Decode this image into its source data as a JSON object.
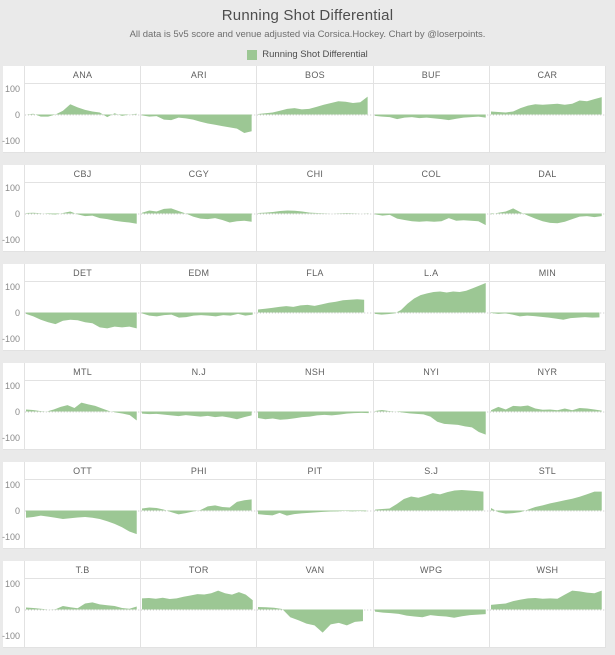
{
  "header": {
    "title": "Running Shot Differential",
    "subtitle": "All data is 5v5 score and venue adjusted via Corsica.Hockey. Chart by @loserpoints.",
    "legend_label": "Running Shot Differential"
  },
  "colors": {
    "area_fill": "#9cc794",
    "outer_bg": "#eaeaea",
    "panel_bg": "#ffffff",
    "grid_border": "#e2e2e2",
    "zero_line": "#c9c9c9",
    "title_text": "#4e4e4e",
    "subtitle_text": "#6e6e6e",
    "axis_text": "#8a8a8a",
    "team_text": "#5f5f5f"
  },
  "axis": {
    "ticks": [
      "100",
      "0",
      "-100"
    ],
    "tick_values": [
      100,
      0,
      -100
    ]
  },
  "chart_data": {
    "type": "area",
    "title": "Running Shot Differential",
    "ylabel": "Running Shot Differential",
    "xlabel": "",
    "ylim": [
      -100,
      100
    ],
    "grid": false,
    "legend_position": "top-center",
    "layout": {
      "rows": 6,
      "cols": 5
    },
    "teams": [
      {
        "label": "ANA",
        "end": 0.97,
        "values": [
          0,
          3,
          -8,
          -8,
          0,
          15,
          40,
          28,
          18,
          12,
          8,
          -10,
          5,
          -5,
          0,
          3
        ]
      },
      {
        "label": "ARI",
        "end": 0.96,
        "values": [
          -3,
          -8,
          -6,
          -20,
          -22,
          -12,
          -15,
          -20,
          -28,
          -35,
          -40,
          -45,
          -50,
          -55,
          -72,
          -65
        ]
      },
      {
        "label": "BOS",
        "end": 0.96,
        "values": [
          2,
          5,
          8,
          15,
          22,
          25,
          20,
          22,
          30,
          38,
          45,
          52,
          50,
          45,
          48,
          70
        ]
      },
      {
        "label": "BUF",
        "end": 0.97,
        "values": [
          -5,
          -8,
          -10,
          -18,
          -12,
          -10,
          -14,
          -12,
          -15,
          -18,
          -22,
          -16,
          -12,
          -10,
          -8,
          -12
        ]
      },
      {
        "label": "CAR",
        "end": 0.97,
        "values": [
          12,
          10,
          8,
          12,
          25,
          35,
          40,
          38,
          40,
          42,
          38,
          42,
          55,
          52,
          60,
          68
        ]
      },
      {
        "label": "CBJ",
        "end": 0.97,
        "values": [
          2,
          3,
          1,
          -2,
          -4,
          2,
          8,
          -3,
          -10,
          -8,
          -18,
          -22,
          -28,
          -32,
          -35,
          -40
        ]
      },
      {
        "label": "CGY",
        "end": 0.96,
        "values": [
          3,
          12,
          8,
          18,
          20,
          10,
          0,
          -12,
          -20,
          -22,
          -18,
          -25,
          -35,
          -30,
          -28,
          -32
        ]
      },
      {
        "label": "CHI",
        "end": 0.97,
        "values": [
          2,
          4,
          6,
          10,
          12,
          11,
          8,
          4,
          2,
          1,
          0,
          1,
          2,
          1,
          0,
          1
        ]
      },
      {
        "label": "COL",
        "end": 0.97,
        "values": [
          -3,
          -8,
          -5,
          -20,
          -25,
          -30,
          -32,
          -30,
          -32,
          -30,
          -18,
          -28,
          -26,
          -28,
          -30,
          -45
        ]
      },
      {
        "label": "DAL",
        "end": 0.97,
        "values": [
          -3,
          3,
          8,
          20,
          5,
          -8,
          -20,
          -30,
          -36,
          -38,
          -32,
          -22,
          -12,
          -10,
          -14,
          -10
        ]
      },
      {
        "label": "DET",
        "end": 0.97,
        "values": [
          -5,
          -15,
          -28,
          -38,
          -45,
          -32,
          -28,
          -30,
          -38,
          -42,
          -58,
          -62,
          -55,
          -58,
          -55,
          -62
        ]
      },
      {
        "label": "EDM",
        "end": 0.97,
        "values": [
          -3,
          -12,
          -15,
          -10,
          -8,
          -20,
          -18,
          -12,
          -10,
          -12,
          -15,
          -10,
          -12,
          -5,
          -12,
          -8
        ]
      },
      {
        "label": "FLA",
        "end": 0.93,
        "values": [
          12,
          15,
          18,
          22,
          25,
          22,
          28,
          30,
          26,
          32,
          38,
          42,
          48,
          50,
          52,
          50
        ]
      },
      {
        "label": "L.A",
        "end": 0.97,
        "values": [
          -5,
          -8,
          -6,
          -3,
          10,
          35,
          55,
          68,
          75,
          80,
          82,
          78,
          82,
          80,
          85,
          95,
          105,
          140
        ]
      },
      {
        "label": "MIN",
        "end": 0.95,
        "values": [
          -2,
          -5,
          -3,
          -8,
          -15,
          -12,
          -14,
          -17,
          -20,
          -24,
          -28,
          -22,
          -20,
          -18,
          -20,
          -19
        ]
      },
      {
        "label": "MTL",
        "end": 0.97,
        "values": [
          8,
          6,
          2,
          0,
          8,
          18,
          25,
          14,
          35,
          28,
          22,
          12,
          2,
          -4,
          -8,
          -14,
          -35
        ]
      },
      {
        "label": "N.J",
        "end": 0.96,
        "values": [
          -8,
          -10,
          -9,
          -12,
          -15,
          -18,
          -14,
          -17,
          -20,
          -17,
          -22,
          -19,
          -24,
          -30,
          -22,
          -15
        ]
      },
      {
        "label": "NSH",
        "end": 0.97,
        "values": [
          -25,
          -30,
          -27,
          -32,
          -30,
          -26,
          -22,
          -20,
          -15,
          -13,
          -15,
          -12,
          -8,
          -6,
          -5,
          -6
        ]
      },
      {
        "label": "NYI",
        "end": 0.97,
        "values": [
          2,
          6,
          2,
          0,
          -4,
          -7,
          -9,
          -11,
          -20,
          -40,
          -48,
          -50,
          -52,
          -58,
          -62,
          -80,
          -90
        ]
      },
      {
        "label": "NYR",
        "end": 0.97,
        "values": [
          5,
          18,
          8,
          22,
          20,
          24,
          12,
          7,
          8,
          5,
          12,
          5,
          14,
          12,
          8,
          4
        ]
      },
      {
        "label": "OTT",
        "end": 0.97,
        "values": [
          -28,
          -25,
          -20,
          -24,
          -28,
          -33,
          -30,
          -27,
          -25,
          -28,
          -33,
          -42,
          -52,
          -65,
          -82,
          -92
        ]
      },
      {
        "label": "PHI",
        "end": 0.96,
        "values": [
          8,
          12,
          10,
          4,
          -6,
          -15,
          -10,
          -4,
          2,
          16,
          20,
          14,
          12,
          34,
          40,
          44
        ]
      },
      {
        "label": "PIT",
        "end": 0.95,
        "values": [
          -14,
          -17,
          -19,
          -9,
          -20,
          -14,
          -11,
          -9,
          -7,
          -5,
          -4,
          -3,
          -1,
          -3,
          -2,
          -3
        ]
      },
      {
        "label": "S.J",
        "end": 0.95,
        "values": [
          4,
          6,
          8,
          25,
          45,
          55,
          50,
          58,
          68,
          63,
          72,
          78,
          80,
          78,
          76,
          74
        ]
      },
      {
        "label": "STL",
        "end": 0.97,
        "values": [
          10,
          -6,
          -12,
          -10,
          -6,
          4,
          14,
          20,
          28,
          34,
          40,
          46,
          54,
          64,
          74,
          74
        ]
      },
      {
        "label": "T.B",
        "end": 0.97,
        "values": [
          8,
          6,
          3,
          0,
          1,
          14,
          9,
          5,
          24,
          28,
          20,
          17,
          14,
          6,
          3,
          12
        ]
      },
      {
        "label": "TOR",
        "end": 0.97,
        "values": [
          44,
          45,
          42,
          46,
          41,
          44,
          50,
          55,
          60,
          59,
          64,
          74,
          64,
          58,
          68,
          58,
          36
        ]
      },
      {
        "label": "VAN",
        "end": 0.92,
        "values": [
          10,
          9,
          7,
          2,
          -30,
          -42,
          -55,
          -62,
          -90,
          -58,
          -52,
          -62,
          -48,
          -45
        ]
      },
      {
        "label": "WPG",
        "end": 0.97,
        "values": [
          -8,
          -12,
          -14,
          -17,
          -24,
          -27,
          -30,
          -22,
          -25,
          -27,
          -32,
          -26,
          -22,
          -20,
          -18
        ]
      },
      {
        "label": "WSH",
        "end": 0.97,
        "values": [
          18,
          21,
          24,
          33,
          39,
          44,
          45,
          42,
          44,
          42,
          58,
          74,
          71,
          66,
          64,
          74
        ]
      }
    ]
  }
}
